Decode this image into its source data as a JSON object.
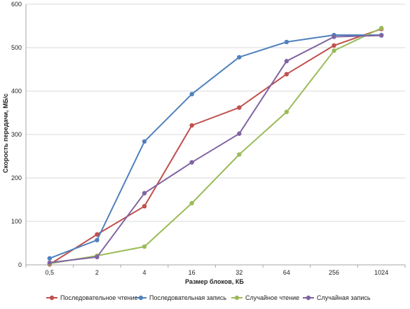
{
  "chart_data": {
    "type": "line",
    "title": "",
    "xlabel": "Размер блоков, КБ",
    "ylabel": "Скорость передачи, МБ/с",
    "categories": [
      "0,5",
      "2",
      "4",
      "16",
      "32",
      "64",
      "256",
      "1024"
    ],
    "ylim": [
      0,
      600
    ],
    "yticks": [
      0,
      100,
      200,
      300,
      400,
      500,
      600
    ],
    "grid": true,
    "legend_position": "bottom",
    "series": [
      {
        "name": "Последовательное чтение",
        "color": "#c0504d",
        "values": [
          1,
          70,
          135,
          321,
          362,
          439,
          505,
          543
        ]
      },
      {
        "name": "Последовательная запись",
        "color": "#4f81bd",
        "values": [
          15,
          57,
          284,
          393,
          478,
          513,
          529,
          529
        ]
      },
      {
        "name": "Случайное чтение",
        "color": "#9bbb59",
        "values": [
          3,
          21,
          42,
          142,
          254,
          352,
          493,
          545
        ]
      },
      {
        "name": "Случайная запись",
        "color": "#8064a2",
        "values": [
          5,
          18,
          165,
          236,
          302,
          469,
          525,
          528
        ]
      }
    ]
  }
}
